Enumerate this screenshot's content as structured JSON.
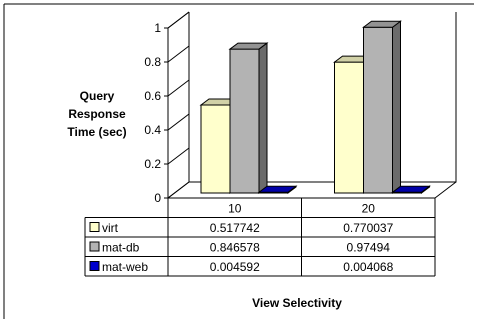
{
  "chart_data": {
    "type": "bar",
    "style": "3d-clustered-column-with-data-table",
    "categories": [
      "10",
      "20"
    ],
    "series": [
      {
        "name": "virt",
        "values": [
          0.517742,
          0.770037
        ],
        "value_labels": [
          "0.517742",
          "0.770037"
        ],
        "color": "#ffffcc"
      },
      {
        "name": "mat-db",
        "values": [
          0.846578,
          0.97494
        ],
        "value_labels": [
          "0.846578",
          "0.97494"
        ],
        "color": "#b3b3b3"
      },
      {
        "name": "mat-web",
        "values": [
          0.004592,
          0.004068
        ],
        "value_labels": [
          "0.004592",
          "0.004068"
        ],
        "color": "#0000cc"
      }
    ],
    "ylabel": [
      "Query",
      "Response",
      "Time (sec)"
    ],
    "xlabel": "View Selectivity",
    "ylim": [
      0,
      1
    ],
    "yticks": [
      0,
      0.2,
      0.4,
      0.6,
      0.8,
      1
    ],
    "ytick_labels": [
      "0",
      "0.2",
      "0.4",
      "0.6",
      "0.8",
      "1"
    ],
    "grid": false,
    "legend": "data-table"
  }
}
